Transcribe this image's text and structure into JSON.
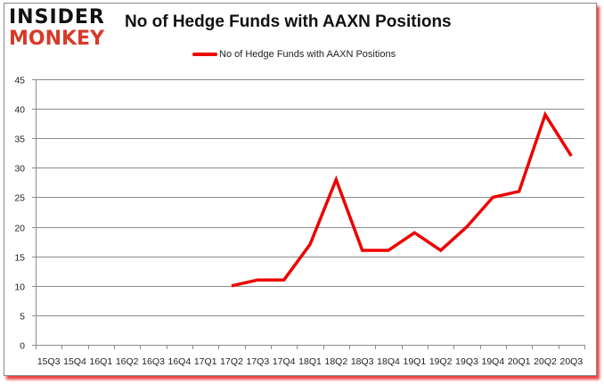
{
  "logo": {
    "line1": "INSIDER",
    "line2": "MONKEY"
  },
  "colors": {
    "series": "#ee0000",
    "logo_red": "#d63a2a",
    "grid": "#8c8c8c"
  },
  "chart_data": {
    "type": "line",
    "title": "No of Hedge Funds with AAXN Positions",
    "xlabel": "",
    "ylabel": "",
    "ylim": [
      0,
      45
    ],
    "yticks": [
      0,
      5,
      10,
      15,
      20,
      25,
      30,
      35,
      40,
      45
    ],
    "grid": true,
    "legend_position": "top",
    "categories": [
      "15Q3",
      "15Q4",
      "16Q1",
      "16Q2",
      "16Q3",
      "16Q4",
      "17Q1",
      "17Q2",
      "17Q3",
      "17Q4",
      "18Q1",
      "18Q2",
      "18Q3",
      "18Q4",
      "19Q1",
      "19Q2",
      "19Q3",
      "19Q4",
      "20Q1",
      "20Q2",
      "20Q3"
    ],
    "series": [
      {
        "name": "No of Hedge Funds with AAXN Positions",
        "values": [
          null,
          null,
          null,
          null,
          null,
          null,
          null,
          10,
          11,
          11,
          17,
          28,
          16,
          16,
          19,
          16,
          20,
          25,
          26,
          39,
          32
        ]
      }
    ]
  }
}
